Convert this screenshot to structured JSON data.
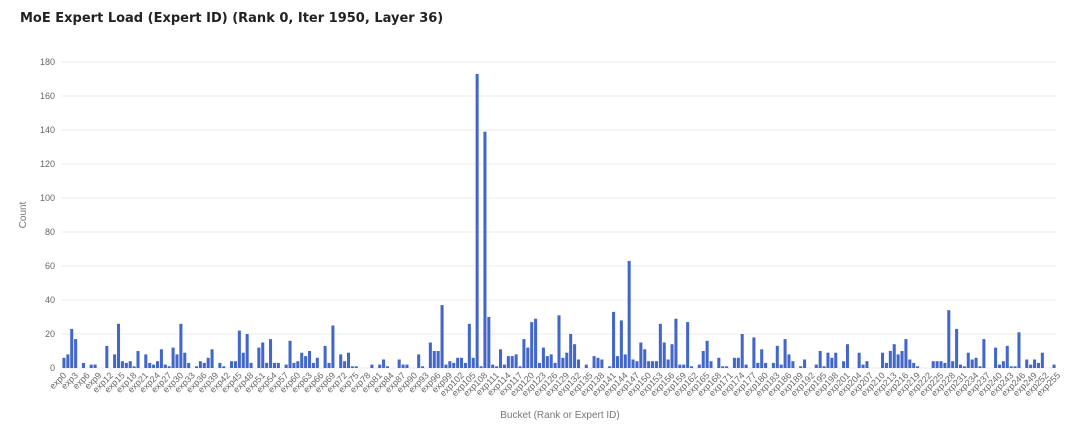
{
  "chart_data": {
    "type": "bar",
    "title": "MoE Expert Load (Expert ID) (Rank 0, Iter 1950, Layer 36)",
    "xlabel": "Bucket (Rank or Expert ID)",
    "ylabel": "Count",
    "ylim": [
      0,
      180
    ],
    "yticks": [
      0,
      20,
      40,
      60,
      80,
      100,
      120,
      140,
      160,
      180
    ],
    "grid": true,
    "bar_color": "#4267c9",
    "values": [
      6,
      8,
      23,
      17,
      0,
      3,
      0,
      2,
      2,
      0,
      0,
      13,
      0,
      8,
      26,
      4,
      3,
      4,
      1,
      10,
      0,
      8,
      3,
      2,
      4,
      11,
      2,
      1,
      12,
      8,
      26,
      9,
      3,
      0,
      1,
      4,
      3,
      6,
      11,
      0,
      3,
      1,
      0,
      4,
      4,
      22,
      9,
      20,
      3,
      0,
      12,
      15,
      3,
      17,
      3,
      3,
      0,
      2,
      16,
      3,
      4,
      9,
      7,
      10,
      3,
      6,
      0,
      13,
      3,
      25,
      0,
      8,
      4,
      9,
      1,
      1,
      0,
      0,
      0,
      2,
      0,
      2,
      5,
      1,
      0,
      0,
      5,
      2,
      2,
      0,
      0,
      8,
      1,
      0,
      15,
      10,
      10,
      37,
      2,
      4,
      3,
      6,
      6,
      3,
      26,
      6,
      173,
      1,
      139,
      30,
      2,
      1,
      11,
      2,
      7,
      7,
      8,
      1,
      17,
      12,
      27,
      29,
      3,
      12,
      7,
      8,
      3,
      31,
      6,
      9,
      20,
      14,
      5,
      0,
      2,
      0,
      7,
      6,
      5,
      0,
      1,
      33,
      7,
      28,
      8,
      63,
      5,
      4,
      15,
      11,
      4,
      4,
      4,
      26,
      15,
      5,
      14,
      29,
      2,
      2,
      27,
      1,
      0,
      2,
      10,
      16,
      4,
      0,
      6,
      1,
      1,
      0,
      6,
      6,
      20,
      2,
      0,
      18,
      3,
      11,
      3,
      0,
      3,
      13,
      2,
      17,
      8,
      4,
      0,
      1,
      5,
      0,
      0,
      2,
      10,
      1,
      9,
      6,
      9,
      0,
      4,
      14,
      0,
      0,
      9,
      2,
      4,
      0,
      0,
      0,
      9,
      3,
      10,
      14,
      8,
      10,
      17,
      5,
      3,
      1,
      0,
      0,
      0,
      4,
      4,
      4,
      3,
      34,
      4,
      23,
      2,
      1,
      9,
      5,
      6,
      1,
      17,
      0,
      0,
      12,
      2,
      4,
      13,
      1,
      1,
      21,
      0,
      5,
      2,
      5,
      3,
      9,
      0,
      0,
      2
    ],
    "tick_labels": [
      "exp0",
      "exp3",
      "exp6",
      "exp9",
      "exp12",
      "exp15",
      "exp18",
      "exp21",
      "exp24",
      "exp27",
      "exp30",
      "exp33",
      "exp36",
      "exp39",
      "exp42",
      "exp45",
      "exp48",
      "exp51",
      "exp54",
      "exp57",
      "exp60",
      "exp63",
      "exp66",
      "exp69",
      "exp72",
      "exp75",
      "exp78",
      "exp81",
      "exp84",
      "exp87",
      "exp90",
      "exp93",
      "exp96",
      "exp99",
      "exp102",
      "exp105",
      "exp108",
      "exp111",
      "exp114",
      "exp117",
      "exp120",
      "exp123",
      "exp126",
      "exp129",
      "exp132",
      "exp135",
      "exp138",
      "exp141",
      "exp144",
      "exp147",
      "exp150",
      "exp153",
      "exp156",
      "exp159",
      "exp162",
      "exp165",
      "exp168",
      "exp171",
      "exp174",
      "exp177",
      "exp180",
      "exp183",
      "exp186",
      "exp189",
      "exp192",
      "exp195",
      "exp198",
      "exp201",
      "exp204",
      "exp207",
      "exp210",
      "exp213",
      "exp216",
      "exp219",
      "exp222",
      "exp225",
      "exp228",
      "exp231",
      "exp234",
      "exp237",
      "exp240",
      "exp243",
      "exp246",
      "exp249",
      "exp252",
      "exp255"
    ]
  }
}
